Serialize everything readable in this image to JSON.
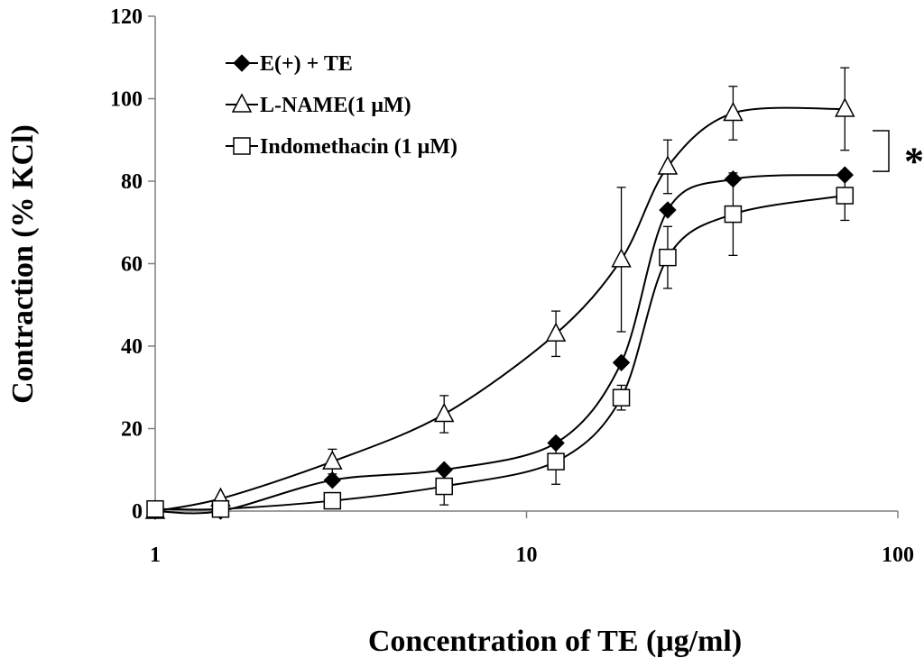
{
  "chart_data": {
    "type": "line",
    "title": "",
    "xlabel": "Concentration of TE (μg/ml)",
    "ylabel": "Contraction (% KCl)",
    "xscale": "log",
    "xlim": [
      1,
      100
    ],
    "ylim": [
      0,
      120
    ],
    "x_ticks": [
      1,
      10,
      100
    ],
    "x_tick_labels": [
      "1",
      "10",
      "100"
    ],
    "y_ticks": [
      0,
      20,
      40,
      60,
      80,
      100,
      120
    ],
    "y_tick_labels": [
      "0",
      "20",
      "40",
      "60",
      "80",
      "100",
      "120"
    ],
    "legend_position": "top-left",
    "series": [
      {
        "name": "E(+) + TE",
        "marker": "diamond",
        "x": [
          1,
          1.5,
          3,
          6,
          12,
          18,
          24,
          36,
          72
        ],
        "y": [
          0,
          0,
          7.5,
          10,
          16.5,
          36,
          73,
          80.5,
          81.5
        ],
        "err": [
          0,
          0,
          0,
          0,
          0,
          0,
          0,
          0,
          0
        ]
      },
      {
        "name": "L-NAME(1 μM)",
        "marker": "triangle",
        "x": [
          1,
          1.5,
          3,
          6,
          12,
          18,
          24,
          36,
          72
        ],
        "y": [
          0,
          3,
          12,
          23.5,
          43,
          61,
          83.5,
          96.5,
          97.5
        ],
        "err": [
          0,
          0,
          3,
          4.5,
          5.5,
          17.5,
          6.5,
          6.5,
          10
        ]
      },
      {
        "name": "Indomethacin (1 μM)",
        "marker": "square",
        "x": [
          1,
          1.5,
          3,
          6,
          12,
          18,
          24,
          36,
          72
        ],
        "y": [
          0.5,
          0.5,
          2.5,
          6,
          12,
          27.5,
          61.5,
          72,
          76.5
        ],
        "err": [
          0,
          0,
          0,
          4.5,
          5.5,
          3,
          7.5,
          10,
          6
        ]
      }
    ],
    "annotations": [
      {
        "text": "*",
        "note": "bracket between L-NAME and E(+) + TE plateaus",
        "y_top": 97.5,
        "y_bottom": 81.5
      }
    ]
  }
}
